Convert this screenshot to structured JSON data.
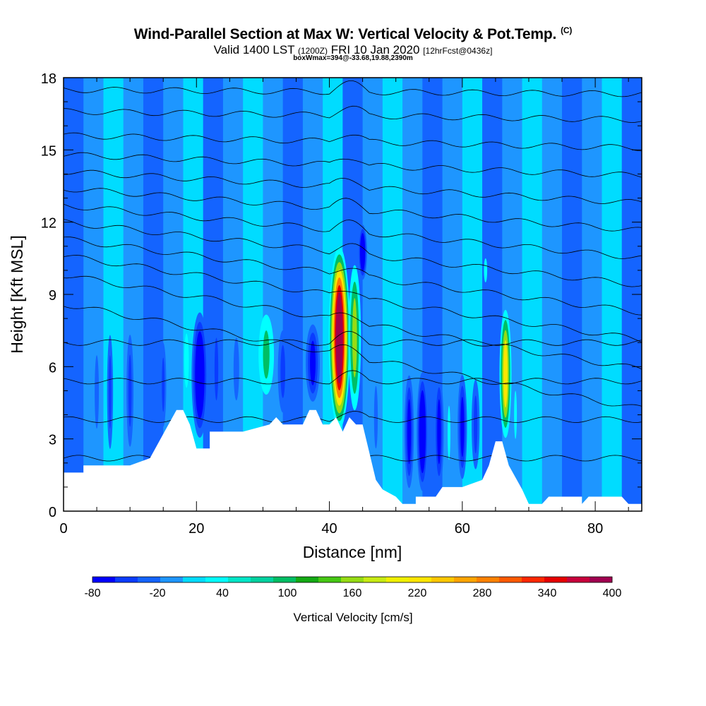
{
  "title": "Wind-Parallel Section at Max W: Vertical Velocity & Pot.Temp.",
  "title_suffix": "(C)",
  "subtitle_main": "Valid 1400 LST",
  "subtitle_utc": "(1200Z)",
  "subtitle_date": "FRI 10 Jan 2020",
  "subtitle_fcst": "[12hrFcst@0436z]",
  "note": "boxWmax=394@-33.68,19.88,2390m",
  "chart_data": {
    "type": "heatmap",
    "title": "Wind-Parallel Section at Max W: Vertical Velocity & Pot.Temp.",
    "xlabel": "Distance [nm]",
    "ylabel": "Height [Kft MSL]",
    "xlim": [
      0,
      87
    ],
    "ylim": [
      0,
      18
    ],
    "x_ticks": [
      0,
      20,
      40,
      60,
      80
    ],
    "y_ticks": [
      0,
      3,
      6,
      9,
      12,
      15,
      18
    ],
    "colorbar": {
      "label": "Vertical Velocity [cm/s]",
      "tick_labels": [
        -80,
        -20,
        40,
        100,
        160,
        220,
        280,
        340,
        400
      ],
      "min": -80,
      "max": 400,
      "colors": [
        "#0000ff",
        "#0a3cff",
        "#1464ff",
        "#1e96ff",
        "#00dcff",
        "#00ffff",
        "#00e6c8",
        "#00d2a0",
        "#00be64",
        "#14aa14",
        "#46c814",
        "#96dc14",
        "#c8eb14",
        "#f0f000",
        "#ffe600",
        "#ffc800",
        "#ffa500",
        "#ff8200",
        "#ff5a00",
        "#ff2800",
        "#e60000",
        "#c8003c",
        "#a00050"
      ]
    },
    "terrain_kft": [
      [
        0,
        1.6
      ],
      [
        3,
        1.6
      ],
      [
        3,
        1.9
      ],
      [
        10,
        1.9
      ],
      [
        13,
        2.2
      ],
      [
        15,
        3.2
      ],
      [
        17,
        4.2
      ],
      [
        18,
        4.2
      ],
      [
        19,
        3.6
      ],
      [
        20,
        2.6
      ],
      [
        22,
        2.6
      ],
      [
        22,
        3.3
      ],
      [
        27,
        3.3
      ],
      [
        31,
        3.6
      ],
      [
        32,
        3.9
      ],
      [
        33,
        3.6
      ],
      [
        36,
        3.6
      ],
      [
        37,
        4.2
      ],
      [
        38,
        4.2
      ],
      [
        39,
        3.6
      ],
      [
        40,
        3.6
      ],
      [
        41,
        3.9
      ],
      [
        42,
        3.3
      ],
      [
        43,
        3.9
      ],
      [
        44,
        3.6
      ],
      [
        45,
        3.6
      ],
      [
        47,
        1.3
      ],
      [
        48,
        0.9
      ],
      [
        50,
        0.6
      ],
      [
        51,
        0.3
      ],
      [
        53,
        0.3
      ],
      [
        53,
        0.6
      ],
      [
        56,
        0.6
      ],
      [
        57,
        1.0
      ],
      [
        60,
        1.0
      ],
      [
        63,
        1.3
      ],
      [
        64,
        1.9
      ],
      [
        65,
        2.9
      ],
      [
        66,
        2.9
      ],
      [
        67,
        1.9
      ],
      [
        69,
        0.9
      ],
      [
        70,
        0.3
      ],
      [
        72,
        0.3
      ],
      [
        73,
        0.6
      ],
      [
        78,
        0.6
      ],
      [
        78,
        0.3
      ],
      [
        79,
        0.6
      ],
      [
        84,
        0.6
      ],
      [
        85,
        0.3
      ],
      [
        87,
        0.3
      ]
    ],
    "w_bands": [
      {
        "x": 5,
        "half_width": 0.9,
        "z0": 1.9,
        "z1": 8.0,
        "w": -20
      },
      {
        "x": 7,
        "half_width": 0.6,
        "z0": 1.9,
        "z1": 8.0,
        "w": -40
      },
      {
        "x": 10,
        "half_width": 0.7,
        "z0": 2.0,
        "z1": 8.0,
        "w": -40
      },
      {
        "x": 13,
        "half_width": 0.8,
        "z0": 2.2,
        "z1": 8.0,
        "w": -20
      },
      {
        "x": 15,
        "half_width": 0.6,
        "z0": 3.0,
        "z1": 7.5,
        "w": -40
      },
      {
        "x": 18.5,
        "half_width": 1.0,
        "z0": 4.0,
        "z1": 8.5,
        "w": 40
      },
      {
        "x": 20.5,
        "half_width": 1.3,
        "z0": 2.8,
        "z1": 8.5,
        "w": -80
      },
      {
        "x": 23,
        "half_width": 0.8,
        "z0": 3.3,
        "z1": 8.5,
        "w": -40
      },
      {
        "x": 26,
        "half_width": 1.2,
        "z0": 3.3,
        "z1": 8.5,
        "w": -20
      },
      {
        "x": 30.5,
        "half_width": 1.4,
        "z0": 4.5,
        "z1": 8.5,
        "w": 100
      },
      {
        "x": 33,
        "half_width": 1.0,
        "z0": 3.6,
        "z1": 8.0,
        "w": -40
      },
      {
        "x": 37.5,
        "half_width": 1.2,
        "z0": 4.3,
        "z1": 8.0,
        "w": -60
      },
      {
        "x": 41.5,
        "half_width": 1.5,
        "z0": 3.4,
        "z1": 11.0,
        "w": 394
      },
      {
        "x": 43.8,
        "half_width": 1.0,
        "z0": 3.9,
        "z1": 10.5,
        "w": 160
      },
      {
        "x": 45,
        "half_width": 0.7,
        "z0": 9.5,
        "z1": 12.0,
        "w": -80
      },
      {
        "x": 47,
        "half_width": 0.8,
        "z0": 1.3,
        "z1": 6.5,
        "w": -20
      },
      {
        "x": 52,
        "half_width": 0.8,
        "z0": 0.6,
        "z1": 6.0,
        "w": -60
      },
      {
        "x": 54,
        "half_width": 0.9,
        "z0": 0.6,
        "z1": 6.0,
        "w": -80
      },
      {
        "x": 56.5,
        "half_width": 0.8,
        "z0": 0.6,
        "z1": 6.0,
        "w": -60
      },
      {
        "x": 58,
        "half_width": 0.6,
        "z0": 1.0,
        "z1": 5.5,
        "w": 40
      },
      {
        "x": 60,
        "half_width": 0.8,
        "z0": 1.0,
        "z1": 6.0,
        "w": -60
      },
      {
        "x": 62,
        "half_width": 0.8,
        "z0": 1.2,
        "z1": 6.0,
        "w": -40
      },
      {
        "x": 63.5,
        "half_width": 0.7,
        "z0": 9.0,
        "z1": 11.0,
        "w": 40
      },
      {
        "x": 66.5,
        "half_width": 0.9,
        "z0": 2.9,
        "z1": 8.5,
        "w": 220
      },
      {
        "x": 68,
        "half_width": 0.6,
        "z0": 2.0,
        "z1": 6.0,
        "w": 40
      }
    ],
    "theta_levels": [
      {
        "label": "",
        "base": 2.2,
        "slope": 0.0
      },
      {
        "label": "",
        "base": 3.8,
        "slope": 0.0
      },
      {
        "label": "",
        "base": 5.4,
        "slope": 0.0
      },
      {
        "label": "",
        "base": 7.0,
        "slope": 0.0
      },
      {
        "label": "",
        "base": 8.6,
        "slope": -0.05
      },
      {
        "label": "",
        "base": 9.8,
        "slope": -0.045
      },
      {
        "label": "",
        "base": 10.6,
        "slope": -0.04
      },
      {
        "label": "",
        "base": 11.3,
        "slope": -0.035
      },
      {
        "label": "",
        "base": 12.0,
        "slope": -0.03
      },
      {
        "label": "",
        "base": 12.7,
        "slope": -0.025
      },
      {
        "label": "",
        "base": 13.4,
        "slope": -0.02
      },
      {
        "label": "",
        "base": 14.1,
        "slope": -0.015
      },
      {
        "label": "",
        "base": 14.8,
        "slope": -0.01
      },
      {
        "label": "",
        "base": 15.6,
        "slope": -0.006
      },
      {
        "label": "",
        "base": 16.6,
        "slope": -0.004
      },
      {
        "label": "",
        "base": 17.5,
        "slope": -0.002
      }
    ]
  }
}
